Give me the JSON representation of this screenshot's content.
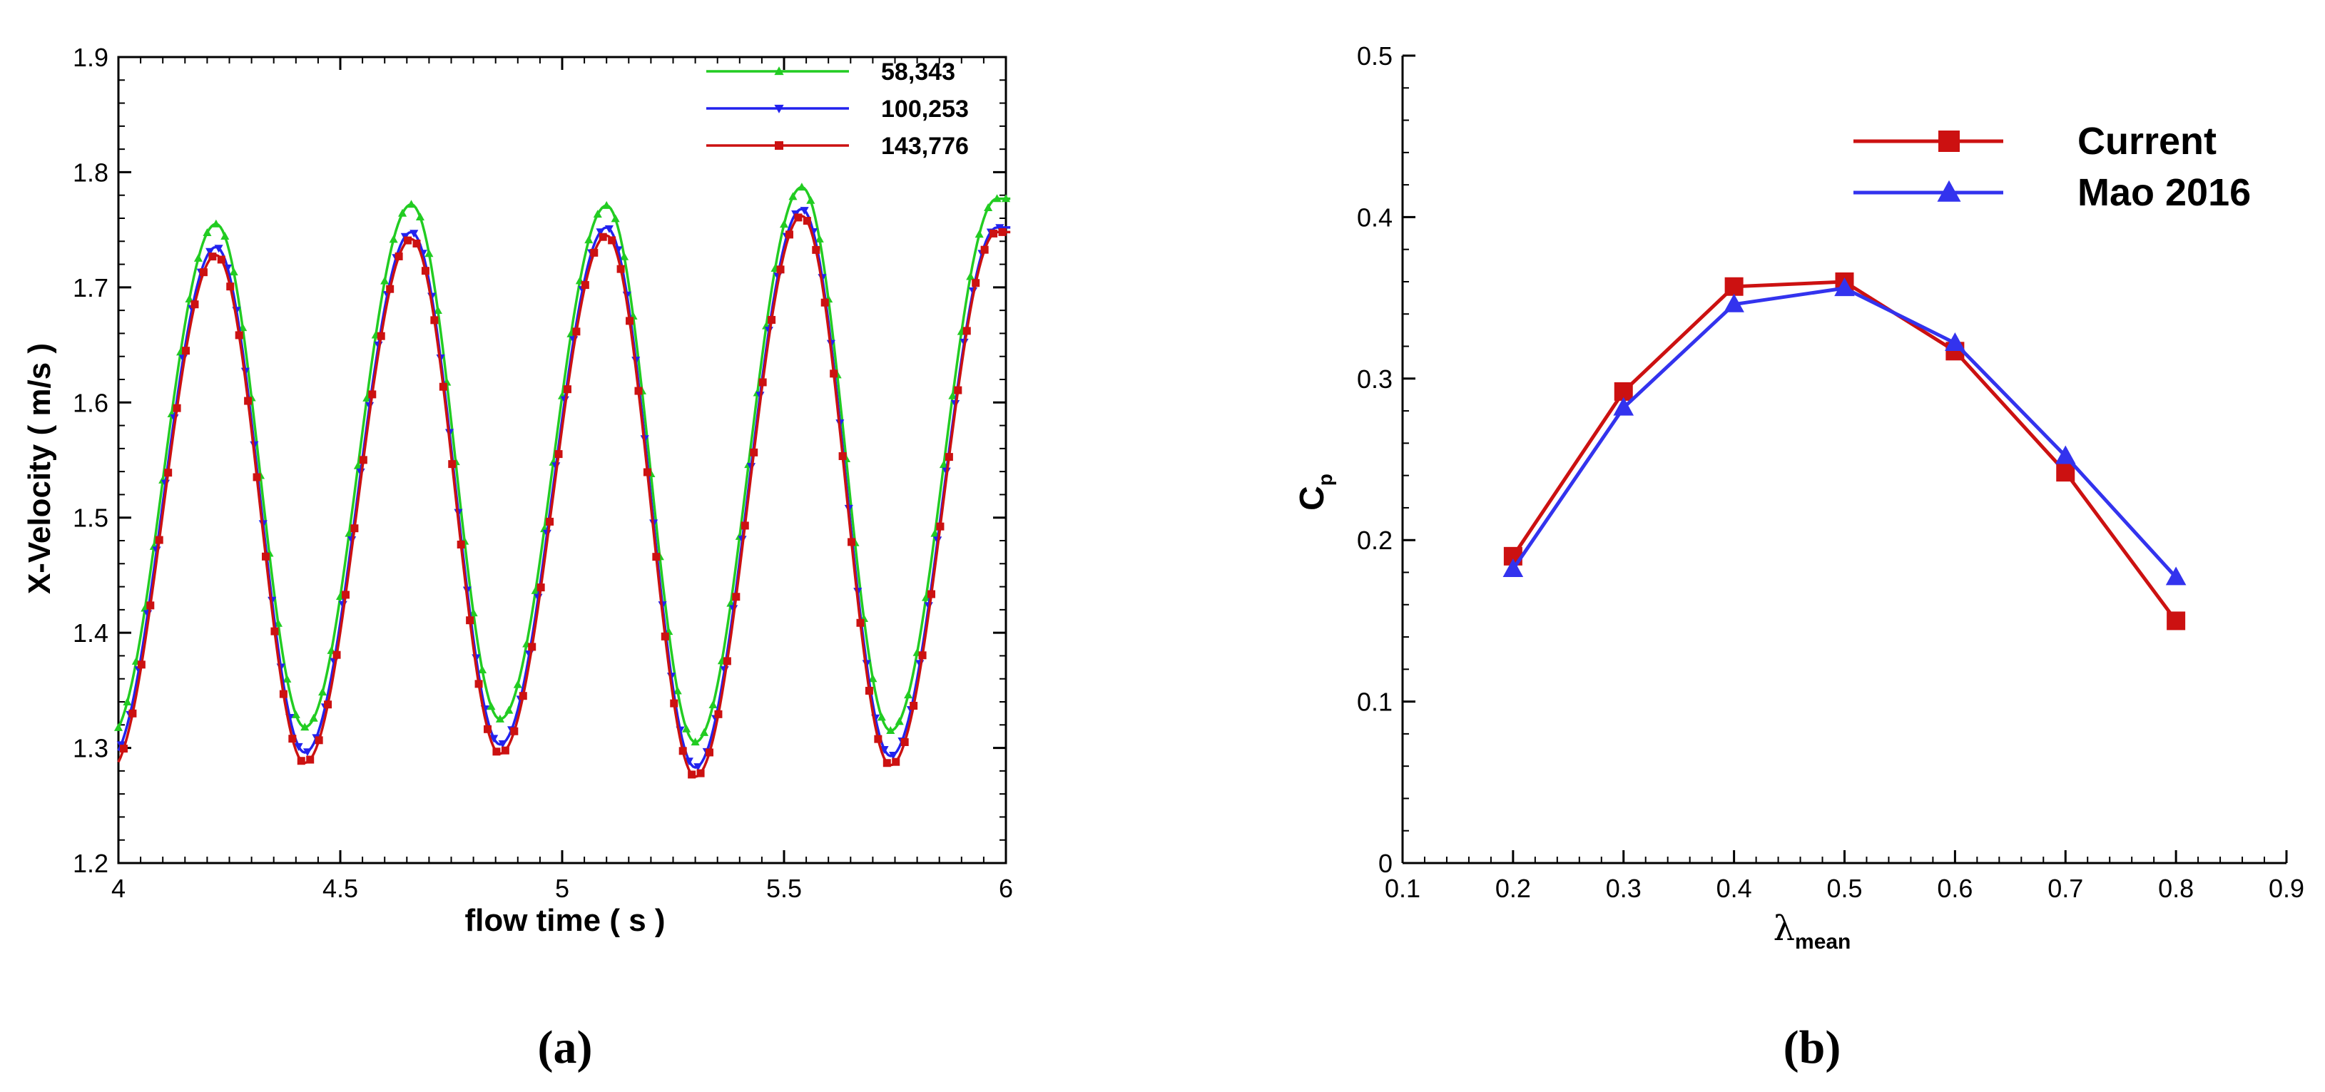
{
  "chart_data": [
    {
      "type": "line",
      "panel_label": "(a)",
      "xlabel": "flow time ( s )",
      "ylabel": "X-Velocity ( m/s )",
      "xlim": [
        4,
        6
      ],
      "ylim": [
        1.2,
        1.9
      ],
      "xticks": [
        "4",
        "4.5",
        "5",
        "5.5",
        "6"
      ],
      "yticks": [
        "1.2",
        "1.3",
        "1.4",
        "1.5",
        "1.6",
        "1.7",
        "1.8",
        "1.9"
      ],
      "legend_position": "top-right",
      "grid": false,
      "series": [
        {
          "name": "58,343",
          "color": "#22cc22",
          "marker": "triangle-up",
          "peaks": [
            {
              "t": 4.22,
              "v": 1.755
            },
            {
              "t": 4.66,
              "v": 1.772
            },
            {
              "t": 5.1,
              "v": 1.771
            },
            {
              "t": 5.54,
              "v": 1.787
            },
            {
              "t": 5.98,
              "v": 1.777
            }
          ],
          "troughs": [
            {
              "t": 3.98,
              "v": 1.31
            },
            {
              "t": 4.42,
              "v": 1.318
            },
            {
              "t": 4.86,
              "v": 1.325
            },
            {
              "t": 5.3,
              "v": 1.305
            },
            {
              "t": 5.74,
              "v": 1.315
            }
          ]
        },
        {
          "name": "100,253",
          "color": "#2222ee",
          "marker": "triangle-down",
          "peaks": [
            {
              "t": 4.22,
              "v": 1.735
            },
            {
              "t": 4.66,
              "v": 1.748
            },
            {
              "t": 5.1,
              "v": 1.752
            },
            {
              "t": 5.54,
              "v": 1.768
            },
            {
              "t": 5.98,
              "v": 1.752
            }
          ],
          "troughs": [
            {
              "t": 3.98,
              "v": 1.29
            },
            {
              "t": 4.42,
              "v": 1.296
            },
            {
              "t": 4.86,
              "v": 1.303
            },
            {
              "t": 5.3,
              "v": 1.283
            },
            {
              "t": 5.74,
              "v": 1.293
            }
          ]
        },
        {
          "name": "143,776",
          "color": "#cc1111",
          "marker": "square",
          "peaks": [
            {
              "t": 4.22,
              "v": 1.728
            },
            {
              "t": 4.66,
              "v": 1.742
            },
            {
              "t": 5.1,
              "v": 1.745
            },
            {
              "t": 5.54,
              "v": 1.762
            },
            {
              "t": 5.98,
              "v": 1.748
            }
          ],
          "troughs": [
            {
              "t": 3.98,
              "v": 1.28
            },
            {
              "t": 4.42,
              "v": 1.287
            },
            {
              "t": 4.86,
              "v": 1.295
            },
            {
              "t": 5.3,
              "v": 1.275
            },
            {
              "t": 5.74,
              "v": 1.285
            }
          ]
        }
      ]
    },
    {
      "type": "line",
      "panel_label": "(b)",
      "xlabel": "λmean",
      "xlabel_symbol": "λ",
      "xlabel_subscript": "mean",
      "ylabel": "Cp",
      "ylabel_main": "C",
      "ylabel_subscript": "p",
      "xlim": [
        0.1,
        0.9
      ],
      "ylim": [
        0,
        0.5
      ],
      "xticks": [
        "0.1",
        "0.2",
        "0.3",
        "0.4",
        "0.5",
        "0.6",
        "0.7",
        "0.8",
        "0.9"
      ],
      "yticks": [
        "0",
        "0.1",
        "0.2",
        "0.3",
        "0.4",
        "0.5"
      ],
      "legend_position": "top-right",
      "grid": false,
      "x": [
        0.2,
        0.3,
        0.4,
        0.5,
        0.6,
        0.7,
        0.8
      ],
      "series": [
        {
          "name": "Current",
          "color": "#cc1111",
          "marker": "square",
          "values": [
            0.19,
            0.292,
            0.357,
            0.36,
            0.317,
            0.242,
            0.15
          ]
        },
        {
          "name": "Mao 2016",
          "color": "#3333ee",
          "marker": "triangle-up",
          "values": [
            0.182,
            0.282,
            0.346,
            0.356,
            0.322,
            0.252,
            0.177
          ]
        }
      ]
    }
  ]
}
